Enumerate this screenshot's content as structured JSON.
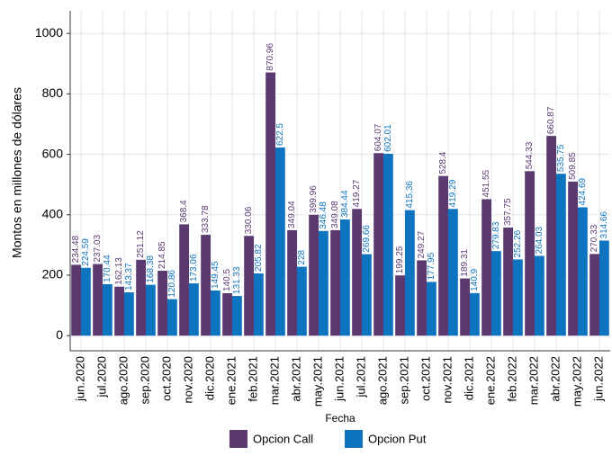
{
  "chart_data": {
    "type": "bar",
    "x_label": "Fecha",
    "y_label": "Montos en millones de dólares",
    "categories": [
      "jun.2020",
      "jul.2020",
      "ago.2020",
      "sep.2020",
      "oct.2020",
      "nov.2020",
      "dic.2020",
      "ene.2021",
      "feb.2021",
      "mar.2021",
      "abr.2021",
      "may.2021",
      "jun.2021",
      "jul.2021",
      "ago.2021",
      "sep.2021",
      "oct.2021",
      "nov.2021",
      "dic.2021",
      "ene.2022",
      "feb.2022",
      "mar.2022",
      "abr.2022",
      "may.2022",
      "jun.2022"
    ],
    "series": [
      {
        "name": "Opcion Call",
        "color": "#5b3a72",
        "values": [
          234.48,
          237.03,
          162.13,
          251.12,
          214.85,
          368.4,
          333.78,
          140.5,
          330.06,
          870.96,
          349.04,
          399.96,
          349.08,
          419.27,
          604.07,
          199.25,
          249.27,
          528.4,
          189.31,
          451.55,
          357.75,
          544.33,
          660.87,
          509.85,
          270.33
        ]
      },
      {
        "name": "Opcion Put",
        "color": "#0f74c0",
        "values": [
          224.59,
          170.44,
          143.37,
          168.38,
          120.86,
          173.06,
          149.45,
          131.33,
          205.82,
          622.5,
          228,
          346.48,
          384.44,
          269.66,
          602.01,
          415.36,
          177.95,
          419.29,
          140.9,
          279.83,
          252.26,
          264.03,
          535.75,
          424.69,
          314.66
        ]
      }
    ],
    "ylim": [
      -50,
      1075
    ],
    "yticks": [
      0,
      200,
      400,
      600,
      800,
      1000
    ],
    "grid": true,
    "legend": "bottom"
  }
}
